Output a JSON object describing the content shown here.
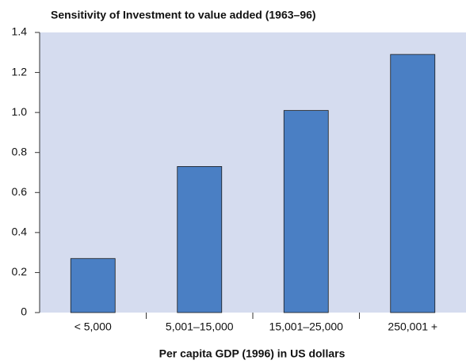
{
  "chart_data": {
    "type": "bar",
    "title": "Sensitivity of Investment to value added (1963–96)",
    "x_label": "Per capita GDP (1996) in US dollars",
    "categories": [
      "< 5,000",
      "5,001–15,000",
      "15,001–25,000",
      "250,001 +"
    ],
    "values": [
      0.27,
      0.73,
      1.01,
      1.29
    ],
    "color": "#4a7fc4",
    "ylim": [
      0,
      1.4
    ],
    "yticks": [
      0,
      0.2,
      0.4,
      0.6,
      0.8,
      {
        "value": 1,
        "label": "1.0"
      },
      1.2,
      1.4
    ],
    "grid": false
  }
}
